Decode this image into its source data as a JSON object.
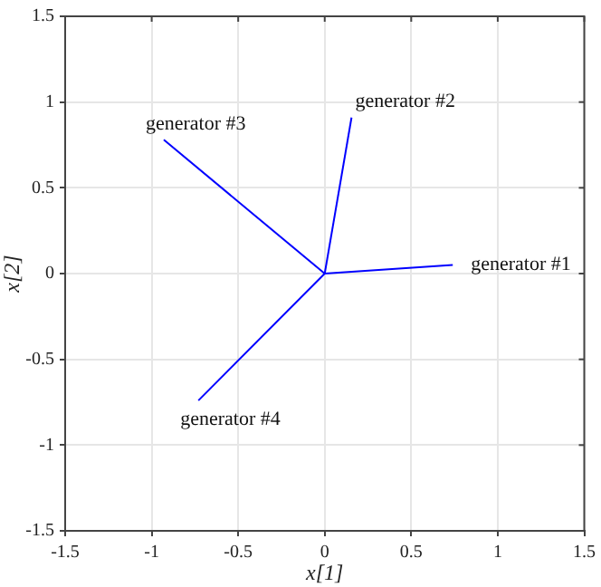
{
  "chart_data": {
    "type": "line",
    "xlabel": "x[1]",
    "ylabel": "x[2]",
    "series": [
      {
        "color": "#0000ff",
        "x": [
          0,
          0.74
        ],
        "values": [
          0,
          0.05
        ]
      },
      {
        "color": "#0000ff",
        "x": [
          0,
          0.155
        ],
        "values": [
          0,
          0.91
        ]
      },
      {
        "color": "#0000ff",
        "x": [
          0,
          -0.93
        ],
        "values": [
          0,
          0.78
        ]
      },
      {
        "color": "#0000ff",
        "x": [
          0,
          -0.73
        ],
        "values": [
          0,
          -0.74
        ]
      }
    ],
    "annotations": [
      {
        "text": "generator #1",
        "x": 0.74,
        "y": 0.05
      },
      {
        "text": "generator #2",
        "x": 0.155,
        "y": 0.91
      },
      {
        "text": "generator #3",
        "x": -0.93,
        "y": 0.78
      },
      {
        "text": "generator #4",
        "x": -0.73,
        "y": -0.74
      }
    ],
    "xlim": [
      -1.5,
      1.5
    ],
    "ylim": [
      -1.5,
      1.5
    ],
    "xticks": [
      -1.5,
      -1,
      -0.5,
      0,
      0.5,
      1,
      1.5
    ],
    "yticks": [
      -1.5,
      -1,
      -0.5,
      0,
      0.5,
      1,
      1.5
    ],
    "grid": true,
    "legend": false,
    "marker": "none",
    "line_style": "solid"
  }
}
